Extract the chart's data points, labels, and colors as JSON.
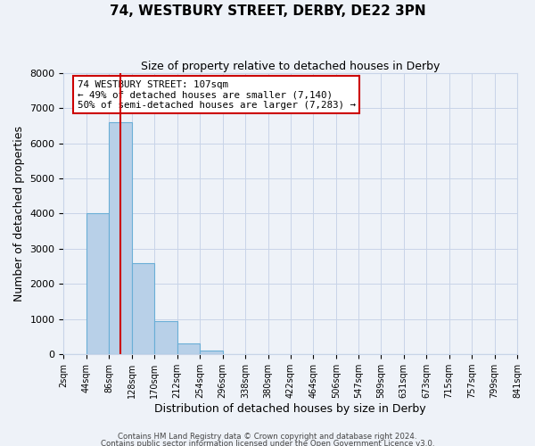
{
  "title": "74, WESTBURY STREET, DERBY, DE22 3PN",
  "subtitle": "Size of property relative to detached houses in Derby",
  "xlabel": "Distribution of detached houses by size in Derby",
  "ylabel": "Number of detached properties",
  "bar_color": "#b8d0e8",
  "bar_edge_color": "#6aaed6",
  "bg_color": "#eef2f8",
  "grid_color": "#c8d4e8",
  "bin_edges": [
    2,
    44,
    86,
    128,
    170,
    212,
    254,
    296,
    338,
    380,
    422,
    464,
    506,
    547,
    589,
    631,
    673,
    715,
    757,
    799,
    841
  ],
  "bin_labels": [
    "2sqm",
    "44sqm",
    "86sqm",
    "128sqm",
    "170sqm",
    "212sqm",
    "254sqm",
    "296sqm",
    "338sqm",
    "380sqm",
    "422sqm",
    "464sqm",
    "506sqm",
    "547sqm",
    "589sqm",
    "631sqm",
    "673sqm",
    "715sqm",
    "757sqm",
    "799sqm",
    "841sqm"
  ],
  "counts": [
    0,
    4000,
    6600,
    2600,
    950,
    320,
    110,
    0,
    0,
    0,
    0,
    0,
    0,
    0,
    0,
    0,
    0,
    0,
    0,
    0
  ],
  "ylim": [
    0,
    8000
  ],
  "yticks": [
    0,
    1000,
    2000,
    3000,
    4000,
    5000,
    6000,
    7000,
    8000
  ],
  "vline_x": 107,
  "vline_color": "#cc0000",
  "annotation_line1": "74 WESTBURY STREET: 107sqm",
  "annotation_line2": "← 49% of detached houses are smaller (7,140)",
  "annotation_line3": "50% of semi-detached houses are larger (7,283) →",
  "annotation_box_color": "#ffffff",
  "annotation_box_edge": "#cc0000",
  "footer1": "Contains HM Land Registry data © Crown copyright and database right 2024.",
  "footer2": "Contains public sector information licensed under the Open Government Licence v3.0."
}
